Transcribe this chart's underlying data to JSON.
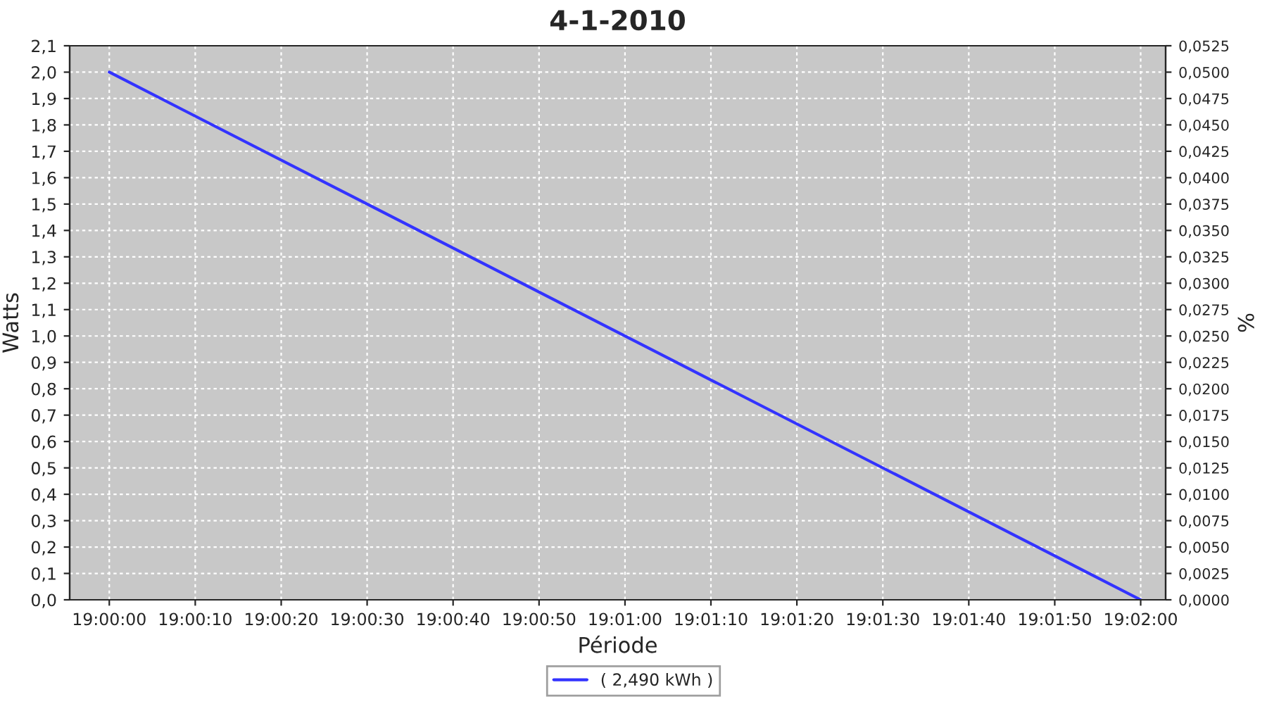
{
  "chart_data": {
    "type": "line",
    "title": "4-1-2010",
    "xlabel": "Période",
    "ylabel": "Watts",
    "y2label": "%",
    "x": [
      19.0,
      19.033333
    ],
    "series": [
      {
        "name": "( 2,490 kWh )",
        "color": "#3333ff",
        "values": [
          2.0,
          0.0
        ]
      }
    ],
    "xlim": [
      18.99872,
      19.03414
    ],
    "xticks": [
      {
        "value": 19.0,
        "label": "19:00:00"
      },
      {
        "value": 19.002778,
        "label": "19:00:10"
      },
      {
        "value": 19.005556,
        "label": "19:00:20"
      },
      {
        "value": 19.008333,
        "label": "19:00:30"
      },
      {
        "value": 19.011111,
        "label": "19:00:40"
      },
      {
        "value": 19.013889,
        "label": "19:00:50"
      },
      {
        "value": 19.016667,
        "label": "19:01:00"
      },
      {
        "value": 19.019444,
        "label": "19:01:10"
      },
      {
        "value": 19.022222,
        "label": "19:01:20"
      },
      {
        "value": 19.025,
        "label": "19:01:30"
      },
      {
        "value": 19.027778,
        "label": "19:01:40"
      },
      {
        "value": 19.030556,
        "label": "19:01:50"
      },
      {
        "value": 19.033333,
        "label": "19:02:00"
      }
    ],
    "ylim": [
      0,
      2.1
    ],
    "yticks": [
      {
        "value": 0,
        "label": "0,0"
      },
      {
        "value": 0.1,
        "label": "0,1"
      },
      {
        "value": 0.2,
        "label": "0,2"
      },
      {
        "value": 0.3,
        "label": "0,3"
      },
      {
        "value": 0.4,
        "label": "0,4"
      },
      {
        "value": 0.5,
        "label": "0,5"
      },
      {
        "value": 0.6,
        "label": "0,6"
      },
      {
        "value": 0.7,
        "label": "0,7"
      },
      {
        "value": 0.8,
        "label": "0,8"
      },
      {
        "value": 0.9,
        "label": "0,9"
      },
      {
        "value": 1.0,
        "label": "1,0"
      },
      {
        "value": 1.1,
        "label": "1,1"
      },
      {
        "value": 1.2,
        "label": "1,2"
      },
      {
        "value": 1.3,
        "label": "1,3"
      },
      {
        "value": 1.4,
        "label": "1,4"
      },
      {
        "value": 1.5,
        "label": "1,5"
      },
      {
        "value": 1.6,
        "label": "1,6"
      },
      {
        "value": 1.7,
        "label": "1,7"
      },
      {
        "value": 1.8,
        "label": "1,8"
      },
      {
        "value": 1.9,
        "label": "1,9"
      },
      {
        "value": 2.0,
        "label": "2,0"
      },
      {
        "value": 2.1,
        "label": "2,1"
      }
    ],
    "y2lim": [
      0,
      0.0525
    ],
    "y2ticks": [
      {
        "value": 0,
        "label": "0,0000"
      },
      {
        "value": 0.0025,
        "label": "0,0025"
      },
      {
        "value": 0.005,
        "label": "0,0050"
      },
      {
        "value": 0.0075,
        "label": "0,0075"
      },
      {
        "value": 0.01,
        "label": "0,0100"
      },
      {
        "value": 0.0125,
        "label": "0,0125"
      },
      {
        "value": 0.015,
        "label": "0,0150"
      },
      {
        "value": 0.0175,
        "label": "0,0175"
      },
      {
        "value": 0.02,
        "label": "0,0200"
      },
      {
        "value": 0.0225,
        "label": "0,0225"
      },
      {
        "value": 0.025,
        "label": "0,0250"
      },
      {
        "value": 0.0275,
        "label": "0,0275"
      },
      {
        "value": 0.03,
        "label": "0,0300"
      },
      {
        "value": 0.0325,
        "label": "0,0325"
      },
      {
        "value": 0.035,
        "label": "0,0350"
      },
      {
        "value": 0.0375,
        "label": "0,0375"
      },
      {
        "value": 0.04,
        "label": "0,0400"
      },
      {
        "value": 0.0425,
        "label": "0,0425"
      },
      {
        "value": 0.045,
        "label": "0,0450"
      },
      {
        "value": 0.0475,
        "label": "0,0475"
      },
      {
        "value": 0.05,
        "label": "0,0500"
      },
      {
        "value": 0.0525,
        "label": "0,0525"
      }
    ],
    "grid": true,
    "legend": "bottom",
    "marker": "none",
    "line_style": "solid"
  }
}
